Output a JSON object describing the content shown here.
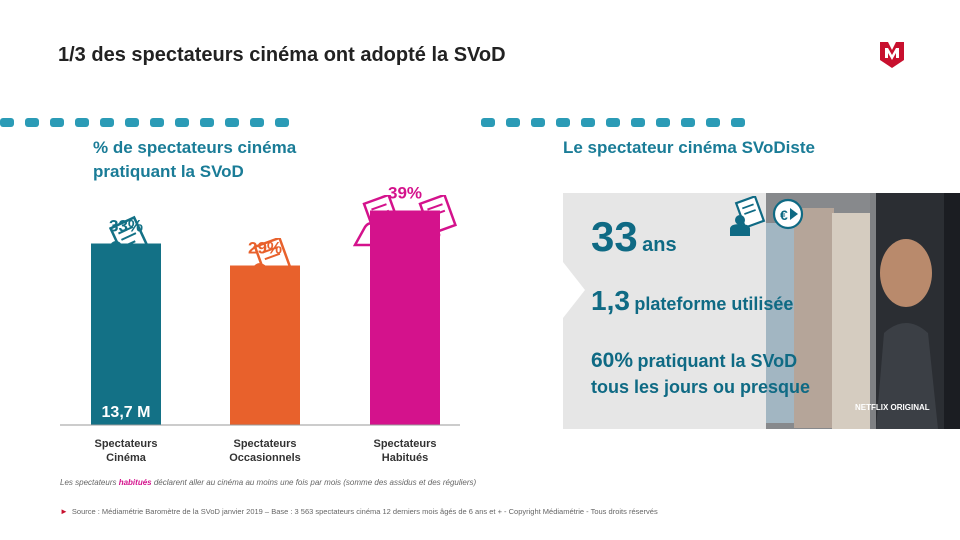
{
  "header": {
    "title": "1/3 des spectateurs cinéma ont adopté la SVoD"
  },
  "left": {
    "subtitle_line1": "% de spectateurs cinéma",
    "subtitle_line2": "pratiquant la SVoD"
  },
  "right": {
    "subtitle": "Le spectateur cinéma SVoDiste",
    "stat1_value": "33",
    "stat1_unit": "ans",
    "stat2_value": "1,3",
    "stat2_unit": "plateforme utilisée",
    "stat3_value": "60%",
    "stat3_text": "pratiquant la SVoD",
    "stat3_line2": "tous les jours ou presque",
    "badge_netflix": "NETFLIX ORIGINAL"
  },
  "chart_data": {
    "type": "bar",
    "categories": [
      "Spectateurs Cinéma",
      "Spectateurs Occasionnels",
      "Spectateurs Habitués"
    ],
    "category_lines": [
      [
        "Spectateurs",
        "Cinéma"
      ],
      [
        "Spectateurs",
        "Occasionnels"
      ],
      [
        "Spectateurs",
        "Habitués"
      ]
    ],
    "values": [
      33,
      29,
      39
    ],
    "labels": [
      "33%",
      "29%",
      "39%"
    ],
    "inner_label": "13,7 M",
    "colors": [
      "#137186",
      "#e8612c",
      "#d4128c"
    ],
    "label_colors": [
      "#137186",
      "#e8612c",
      "#d4128c"
    ],
    "category_colors": [
      "#137186",
      "#e8612c",
      "#d4128c"
    ],
    "ylim": [
      0,
      60
    ]
  },
  "footer": {
    "note_prefix": "Les spectateurs ",
    "note_highlight": "habitués",
    "note_rest": " déclarent aller au cinéma au moins une fois par mois (somme des assidus et des réguliers)",
    "source": "Source : Médiamétrie Baromètre de la SVoD janvier 2019 – Base : 3 563 spectateurs cinéma 12 derniers mois âgés de 6 ans et + - Copyright Médiamétrie - Tous droits réservés"
  }
}
